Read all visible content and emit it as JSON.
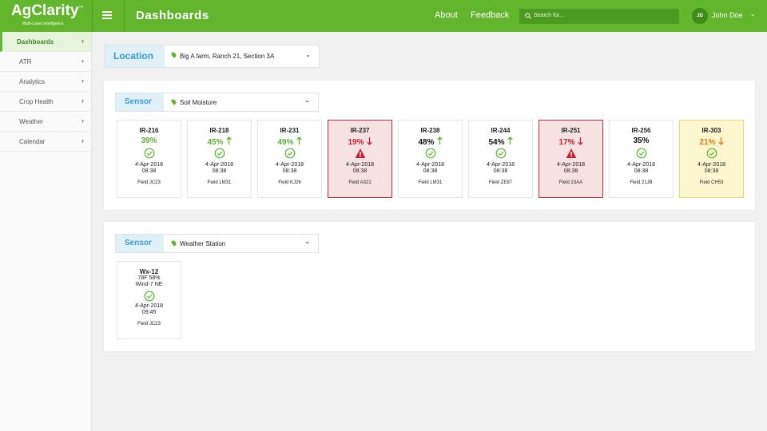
{
  "header": {
    "logo": "AgClarity",
    "tm": "™",
    "tagline": "Multi-Layer Intelligence",
    "title": "Dashboards",
    "links": [
      "About",
      "Feedback"
    ],
    "search_placeholder": "Search for...",
    "user_initials": "JD",
    "user_name": "John Doe"
  },
  "sidebar": {
    "items": [
      {
        "label": "Dashboards",
        "active": true
      },
      {
        "label": "ATR",
        "active": false
      },
      {
        "label": "Analytics",
        "active": false
      },
      {
        "label": "Crop Health",
        "active": false
      },
      {
        "label": "Weather",
        "active": false
      },
      {
        "label": "Calendar",
        "active": false
      }
    ]
  },
  "location": {
    "label": "Location",
    "value": "Big A farm, Ranch 21, Section 3A"
  },
  "panels": [
    {
      "label": "Sensor",
      "value": "Soil Moisture",
      "cards": [
        {
          "id": "IR-216",
          "lines": [],
          "reading": "39%",
          "reading_color": "green",
          "trend": null,
          "status": "ok",
          "tone": "normal",
          "date": "4-Apr-2018",
          "time": "08:38",
          "field": "Field JC23"
        },
        {
          "id": "IR-218",
          "lines": [],
          "reading": "45%",
          "reading_color": "green",
          "trend": "up",
          "status": "ok",
          "tone": "normal",
          "date": "4-Apr-2018",
          "time": "08:38",
          "field": "Field LM31"
        },
        {
          "id": "IR-231",
          "lines": [],
          "reading": "49%",
          "reading_color": "green",
          "trend": "up",
          "status": "ok",
          "tone": "normal",
          "date": "4-Apr-2018",
          "time": "08:38",
          "field": "Field KJ26"
        },
        {
          "id": "IR-237",
          "lines": [],
          "reading": "19%",
          "reading_color": "red",
          "trend": "down",
          "status": "alert",
          "tone": "alert",
          "date": "4-Apr-2018",
          "time": "08:38",
          "field": "Field A321"
        },
        {
          "id": "IR-238",
          "lines": [],
          "reading": "48%",
          "reading_color": "black",
          "trend": "up",
          "status": "ok",
          "tone": "normal",
          "date": "4-Apr-2018",
          "time": "08:38",
          "field": "Field LM31"
        },
        {
          "id": "IR-244",
          "lines": [],
          "reading": "54%",
          "reading_color": "black",
          "trend": "up",
          "status": "ok",
          "tone": "normal",
          "date": "4-Apr-2018",
          "time": "08:38",
          "field": "Field ZE87"
        },
        {
          "id": "IR-251",
          "lines": [],
          "reading": "17%",
          "reading_color": "red",
          "trend": "down",
          "status": "alert",
          "tone": "alert",
          "date": "4-Apr-2018",
          "time": "08:38",
          "field": "Field 23AA"
        },
        {
          "id": "IR-256",
          "lines": [],
          "reading": "35%",
          "reading_color": "black",
          "trend": null,
          "status": "ok",
          "tone": "normal",
          "date": "4-Apr-2018",
          "time": "08:38",
          "field": "Field 21JB"
        },
        {
          "id": "IR-303",
          "lines": [],
          "reading": "21%",
          "reading_color": "orange",
          "trend": "down",
          "status": "ok",
          "tone": "warn",
          "date": "4-Apr-2018",
          "time": "08:38",
          "field": "Field CH53"
        }
      ]
    },
    {
      "label": "Sensor",
      "value": "Weather Station",
      "cards": [
        {
          "id": "Wx-12",
          "lines": [
            "78F   58%",
            "Wind-7 NE"
          ],
          "reading": null,
          "reading_color": "black",
          "trend": null,
          "status": "ok",
          "tone": "normal",
          "date": "4-Apr-2018",
          "time": "09:45",
          "field": "Field JC23"
        }
      ]
    }
  ]
}
